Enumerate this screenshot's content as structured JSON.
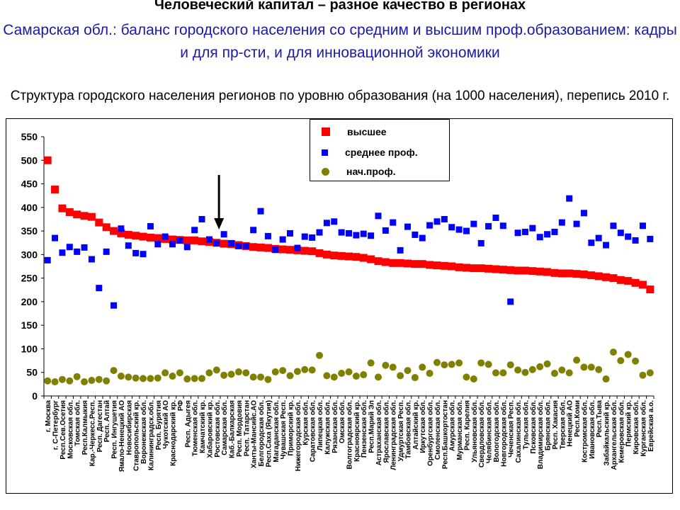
{
  "slide": {
    "title": "Человеческий капитал – разное качество в регионах",
    "subtitle": "Самарская обл.: баланс городского населения со средним и высшим проф.образованием: кадры и для пр-сти, и для инновационной экономики",
    "chart_title": "Структура городского населения регионов по уровню образования (на 1000 населения), перепись 2010 г."
  },
  "colors": {
    "higher": "#ff0000",
    "secondary": "#0000ff",
    "primary": "#808000",
    "subtitle": "#1a1aa6"
  },
  "chart_data": {
    "type": "scatter",
    "ylim": [
      0,
      550
    ],
    "yticks": [
      0,
      50,
      100,
      150,
      200,
      250,
      300,
      350,
      400,
      450,
      500,
      550
    ],
    "grid": false,
    "legend_position": "top-center",
    "annotation": "arrow pointing to Самарская обл.",
    "categories": [
      "г. Москва",
      "г. С-Петербург",
      "Респ.Сев.Осетия",
      "Московская обл.",
      "Томская обл.",
      "Респ.Калмыкия",
      "Кар.-Черкесс.Респ.",
      "Респ. Дагестан",
      "Респ. Алтай",
      "Респ. Ингушетия",
      "Ямало-Ненецкий АО",
      "Новосибирская",
      "Ставропольский кр.",
      "Воронежская обл.",
      "Калининградск.обл.",
      "Респ. Бурятия",
      "Чукотский АО",
      "Краснодарский кр.",
      "РФ",
      "Респ. Адыгея",
      "Тюменская обл.",
      "Камчатский кр.",
      "Хабаровский кр.",
      "Ростовская обл.",
      "Самарская обл.",
      "Каб.-Балкарская",
      "Респ. Мордовия",
      "Респ. Татарстан",
      "Ханты-Мансийс.АО",
      "Белгородская обл.",
      "Респ.Саха (Якутия)",
      "Магаданская обл.",
      "Чувашская Респ.",
      "Приморский кр.",
      "Нижегородская обл.",
      "Курская обл.",
      "Саратовская обл.",
      "Липецкая обл.",
      "Калужская обл.",
      "Рязанская обл.",
      "Омская обл.",
      "Волгоградская обл.",
      "Красноярский кр.",
      "Пензенская обл.",
      "Респ.Марий Эл",
      "Астраханская обл.",
      "Ярославская обл.",
      "Ленинградская обл.",
      "Удмуртская Респ.",
      "Тамбовская обл.",
      "Алтайский кр.",
      "Иркутская обл.",
      "Оренбургская обл.",
      "Смоленская обл.",
      "Респ.Башкортостан",
      "Амурская обл.",
      "Мурманская обл.",
      "Респ. Карелия",
      "Ульяновская обл.",
      "Свердловская обл.",
      "Челябинская обл.",
      "Вологодская обл.",
      "Новгородская обл.",
      "Чеченская Респ.",
      "Сахалинская обл.",
      "Тульская обл.",
      "Псковская обл.",
      "Владимирская обл.",
      "Брянская обл.",
      "Респ. Хакасия",
      "Тверская обл.",
      "Ненецкий АО",
      "Респ.Коми",
      "Костромская обл.",
      "Ивановская обл.",
      "Респ.Тыва",
      "Забайкальский кр.",
      "Архангельская обл.",
      "Кемеровская обл.",
      "Пермский кр.",
      "Кировская обл.",
      "Курганская обл.",
      "Еврейская а.о."
    ],
    "series": [
      {
        "name": "высшее",
        "marker": "square",
        "color": "#ff0000",
        "values": [
          500,
          438,
          398,
          390,
          385,
          382,
          380,
          368,
          358,
          350,
          345,
          342,
          340,
          338,
          336,
          335,
          333,
          332,
          331,
          330,
          330,
          328,
          327,
          325,
          323,
          322,
          320,
          318,
          316,
          315,
          314,
          312,
          311,
          310,
          309,
          308,
          307,
          303,
          300,
          298,
          297,
          296,
          295,
          293,
          290,
          286,
          284,
          282,
          282,
          281,
          280,
          280,
          278,
          277,
          276,
          275,
          273,
          272,
          271,
          271,
          270,
          269,
          268,
          267,
          266,
          266,
          265,
          264,
          263,
          261,
          260,
          260,
          259,
          258,
          256,
          254,
          252,
          250,
          246,
          244,
          240,
          236,
          226
        ]
      },
      {
        "name": "среднее проф.",
        "marker": "square",
        "color": "#0000ff",
        "values": [
          288,
          335,
          304,
          316,
          306,
          315,
          290,
          229,
          306,
          192,
          355,
          319,
          303,
          301,
          360,
          322,
          338,
          322,
          330,
          316,
          352,
          375,
          332,
          324,
          343,
          324,
          318,
          318,
          352,
          392,
          339,
          310,
          332,
          345,
          314,
          338,
          336,
          347,
          367,
          370,
          347,
          345,
          341,
          344,
          340,
          382,
          351,
          368,
          309,
          359,
          342,
          335,
          362,
          370,
          375,
          358,
          353,
          350,
          365,
          324,
          360,
          378,
          361,
          200,
          346,
          348,
          356,
          337,
          343,
          348,
          368,
          419,
          365,
          388,
          325,
          335,
          320,
          361,
          346,
          338,
          330,
          361,
          333
        ]
      },
      {
        "name": "нач.проф.",
        "marker": "circle",
        "color": "#808000",
        "values": [
          32,
          30,
          35,
          32,
          41,
          30,
          33,
          35,
          32,
          54,
          42,
          40,
          38,
          37,
          37,
          38,
          49,
          42,
          49,
          36,
          37,
          37,
          49,
          55,
          44,
          46,
          51,
          49,
          40,
          40,
          35,
          51,
          54,
          43,
          52,
          56,
          55,
          86,
          43,
          40,
          48,
          51,
          42,
          45,
          70,
          40,
          65,
          61,
          43,
          54,
          39,
          61,
          48,
          71,
          66,
          67,
          70,
          40,
          36,
          70,
          67,
          49,
          49,
          66,
          55,
          50,
          56,
          62,
          68,
          48,
          55,
          49,
          76,
          61,
          61,
          56,
          36,
          93,
          75,
          88,
          74,
          44,
          49
        ]
      }
    ]
  }
}
